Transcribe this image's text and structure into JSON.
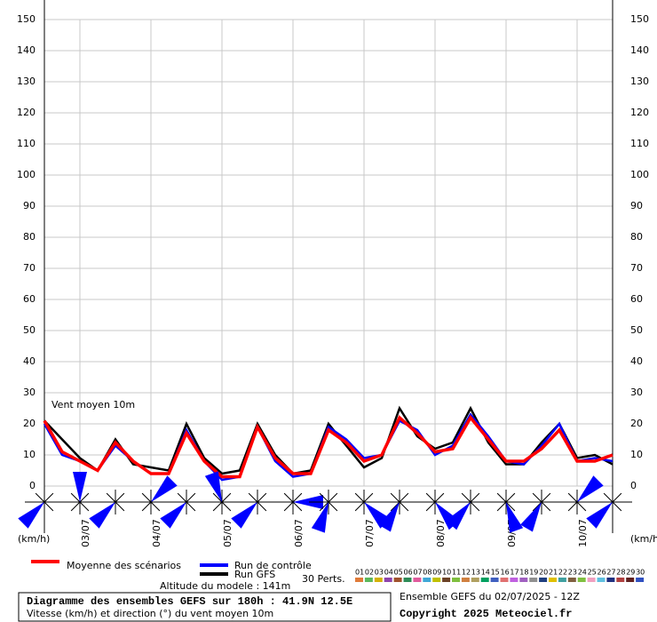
{
  "chart_data": {
    "type": "line",
    "title": "Diagramme des ensembles GEFS sur 180h : 41.9N 12.5E",
    "subtitle": "Vitesse (km/h) et direction (°) du vent moyen 10m",
    "run_label": "Ensemble GEFS du 02/07/2025 - 12Z",
    "copyright": "Copyright 2025 Meteociel.fr",
    "annotation": "Vent moyen 10m",
    "y_unit": "(km/h)",
    "altitude": "Altitude du modele : 141m",
    "perts_label": "30 Perts.",
    "x": [
      null,
      null,
      "03/07",
      null,
      null,
      null,
      "04/07",
      null,
      null,
      null,
      "05/07",
      null,
      null,
      null,
      "06/07",
      null,
      null,
      null,
      "07/07",
      null,
      null,
      null,
      "08/07",
      null,
      null,
      null,
      "09/07",
      null,
      null,
      null,
      "10/07",
      null,
      null
    ],
    "ylim": [
      0,
      150
    ],
    "yticks": [
      0,
      10,
      20,
      30,
      40,
      50,
      60,
      70,
      80,
      90,
      100,
      110,
      120,
      130,
      140,
      150
    ],
    "grid": true,
    "series": [
      {
        "name": "Run GFS",
        "color": "#000000",
        "width": 2.5,
        "values": [
          21,
          15,
          9,
          5,
          15,
          7,
          6,
          5,
          20,
          9,
          4,
          5,
          20,
          10,
          4,
          5,
          20,
          13,
          6,
          9,
          25,
          16,
          12,
          14,
          25,
          14,
          7,
          7,
          14,
          20,
          9,
          10,
          7
        ]
      },
      {
        "name": "Run de contrôle",
        "color": "#0000ff",
        "width": 2.5,
        "values": [
          20,
          10,
          8,
          5,
          13,
          8,
          4,
          4,
          18,
          8,
          2,
          3,
          19,
          8,
          3,
          4,
          19,
          15,
          9,
          10,
          21,
          18,
          10,
          13,
          23,
          16,
          8,
          7,
          13,
          20,
          8,
          9,
          8
        ]
      },
      {
        "name": "Moyenne des scénarios",
        "color": "#ff0000",
        "width": 3.5,
        "values": [
          21,
          11,
          8,
          5,
          14,
          8,
          4,
          4,
          17,
          8,
          3,
          3,
          19,
          9,
          4,
          4,
          18,
          14,
          8,
          10,
          22,
          17,
          11,
          12,
          22,
          15,
          8,
          8,
          12,
          18,
          8,
          8,
          10
        ]
      }
    ],
    "direction": [
      225,
      0,
      225,
      45,
      225,
      340,
      225,
      90,
      200,
      135,
      210,
      140,
      220,
      160,
      210,
      45,
      225
    ],
    "direction_color": "#0000ff",
    "perturbations": [
      {
        "name": "01",
        "color": "#e07b39"
      },
      {
        "name": "02",
        "color": "#5cb85c"
      },
      {
        "name": "03",
        "color": "#d4b106"
      },
      {
        "name": "04",
        "color": "#8e44ad"
      },
      {
        "name": "05",
        "color": "#a0522d"
      },
      {
        "name": "06",
        "color": "#2e8b57"
      },
      {
        "name": "07",
        "color": "#e05a9c"
      },
      {
        "name": "08",
        "color": "#3fa7d6"
      },
      {
        "name": "09",
        "color": "#c0c000"
      },
      {
        "name": "10",
        "color": "#6b4226"
      },
      {
        "name": "11",
        "color": "#7fbf3f"
      },
      {
        "name": "12",
        "color": "#d08040"
      },
      {
        "name": "13",
        "color": "#b0a060"
      },
      {
        "name": "14",
        "color": "#00a060"
      },
      {
        "name": "15",
        "color": "#4060c0"
      },
      {
        "name": "16",
        "color": "#e07070"
      },
      {
        "name": "17",
        "color": "#c060e0"
      },
      {
        "name": "18",
        "color": "#a060c0"
      },
      {
        "name": "19",
        "color": "#909090"
      },
      {
        "name": "20",
        "color": "#204080"
      },
      {
        "name": "21",
        "color": "#e0c000"
      },
      {
        "name": "22",
        "color": "#40a0a0"
      },
      {
        "name": "23",
        "color": "#806040"
      },
      {
        "name": "24",
        "color": "#80c040"
      },
      {
        "name": "25",
        "color": "#f0a0c0"
      },
      {
        "name": "26",
        "color": "#60c0e0"
      },
      {
        "name": "27",
        "color": "#203080"
      },
      {
        "name": "28",
        "color": "#b04040"
      },
      {
        "name": "29",
        "color": "#602020"
      },
      {
        "name": "30",
        "color": "#3050c0"
      }
    ]
  }
}
